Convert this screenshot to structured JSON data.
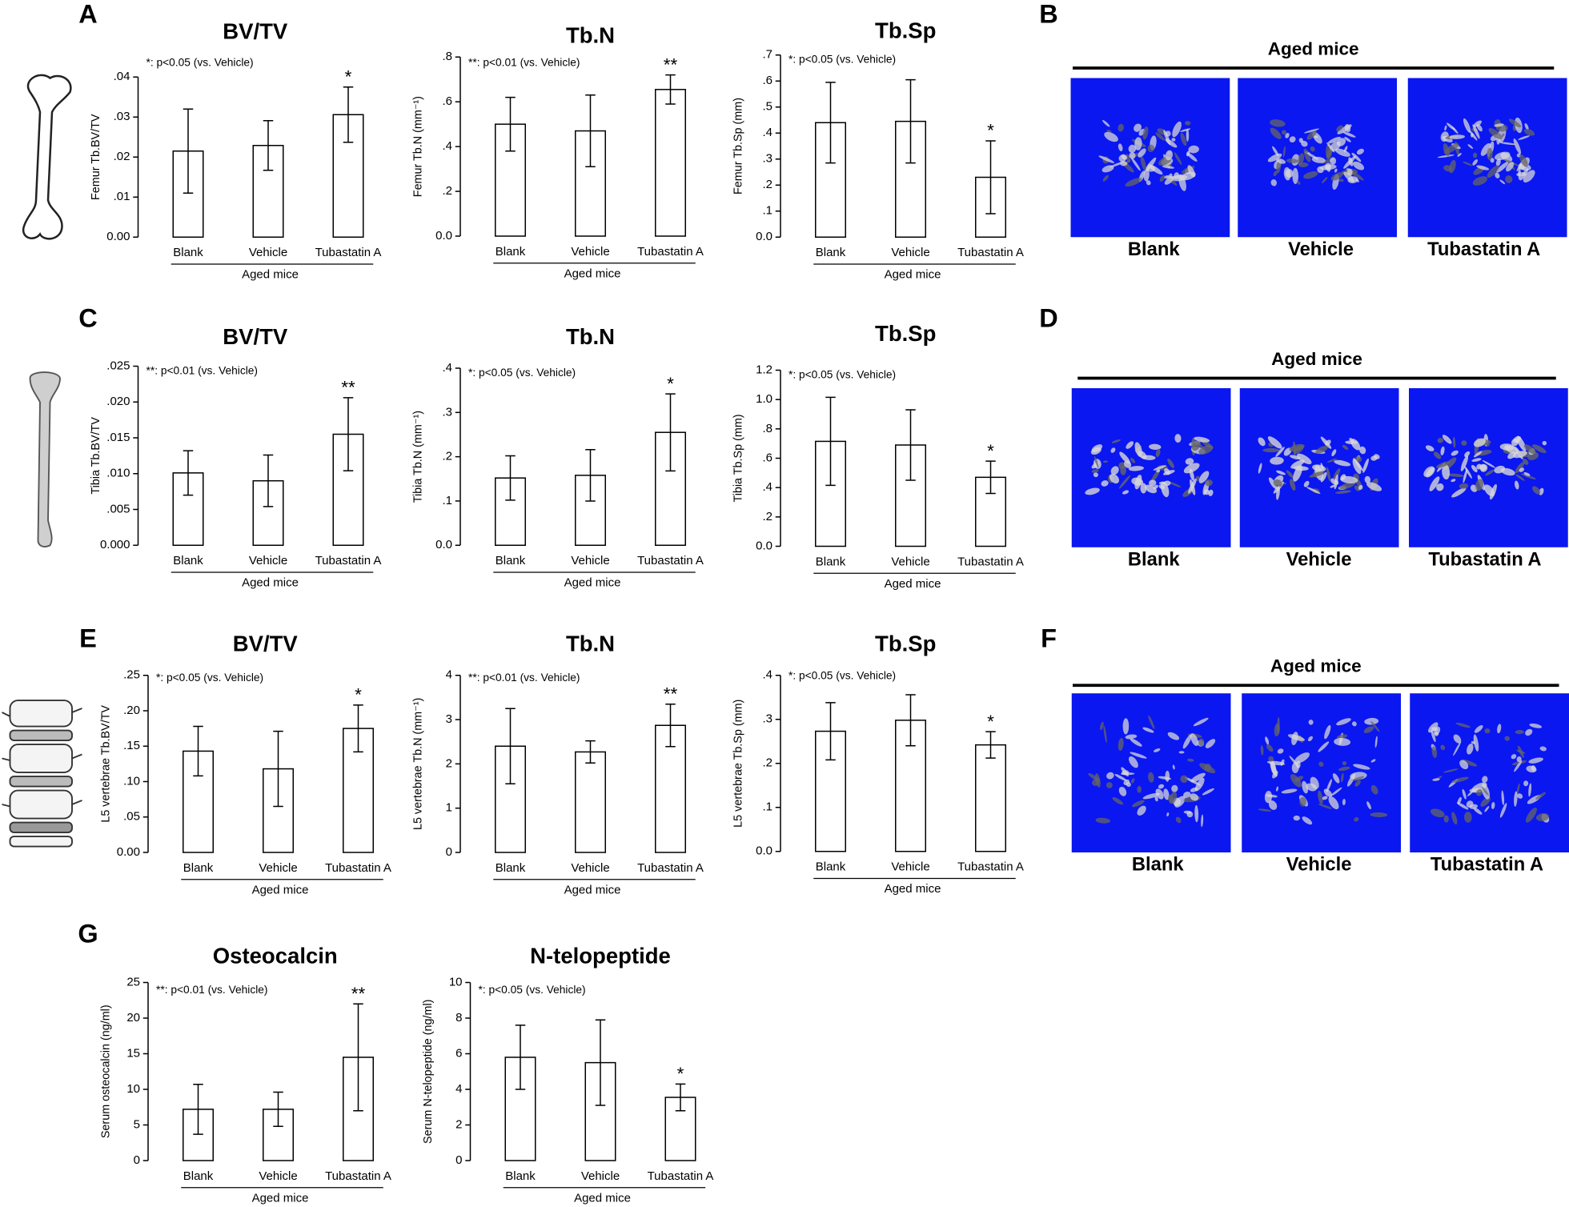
{
  "panel_labels": [
    "A",
    "B",
    "C",
    "D",
    "E",
    "F",
    "G"
  ],
  "chart_data": [
    {
      "type": "bar",
      "title": "BV/TV",
      "note": "*: p<0.05 (vs. Vehicle)",
      "y_label": "Femur Tb.BV/TV",
      "group_label": "Aged mice",
      "categories": [
        "Blank",
        "Vehicle",
        "Tubastatin A"
      ],
      "values": [
        0.0215,
        0.0229,
        0.0306
      ],
      "errors": [
        0.0105,
        0.0062,
        0.0069
      ],
      "significance": [
        null,
        null,
        "*"
      ],
      "color": "#ffffff",
      "ylim": [
        0,
        0.04
      ],
      "yticks": [
        {
          "value": 0,
          "label": "0.00"
        },
        {
          "value": 0.01,
          "label": ".01"
        },
        {
          "value": 0.02,
          "label": ".02"
        },
        {
          "value": 0.03,
          "label": ".03"
        },
        {
          "value": 0.04,
          "label": ".04"
        }
      ]
    },
    {
      "type": "bar",
      "title": "Tb.N",
      "note": "**: p<0.01 (vs. Vehicle)",
      "y_label": "Femur Tb.N (mm⁻¹)",
      "group_label": "Aged mice",
      "categories": [
        "Blank",
        "Vehicle",
        "Tubastatin A"
      ],
      "values": [
        0.5,
        0.47,
        0.655
      ],
      "errors": [
        0.12,
        0.16,
        0.065
      ],
      "significance": [
        null,
        null,
        "**"
      ],
      "color": "#ffffff",
      "ylim": [
        0,
        0.8
      ],
      "yticks": [
        {
          "value": 0,
          "label": "0.0"
        },
        {
          "value": 0.2,
          "label": ".2"
        },
        {
          "value": 0.4,
          "label": ".4"
        },
        {
          "value": 0.6,
          "label": ".6"
        },
        {
          "value": 0.8,
          "label": ".8"
        }
      ]
    },
    {
      "type": "bar",
      "title": "Tb.Sp",
      "note": "*: p<0.05 (vs. Vehicle)",
      "y_label": "Femur Tb.Sp (mm)",
      "group_label": "Aged mice",
      "categories": [
        "Blank",
        "Vehicle",
        "Tubastatin A"
      ],
      "values": [
        0.44,
        0.445,
        0.23
      ],
      "errors": [
        0.155,
        0.16,
        0.14
      ],
      "significance": [
        null,
        null,
        "*"
      ],
      "color": "#ffffff",
      "ylim": [
        0,
        0.7
      ],
      "yticks": [
        {
          "value": 0,
          "label": "0.0"
        },
        {
          "value": 0.1,
          "label": ".1"
        },
        {
          "value": 0.2,
          "label": ".2"
        },
        {
          "value": 0.3,
          "label": ".3"
        },
        {
          "value": 0.4,
          "label": ".4"
        },
        {
          "value": 0.5,
          "label": ".5"
        },
        {
          "value": 0.6,
          "label": ".6"
        },
        {
          "value": 0.7,
          "label": ".7"
        }
      ]
    },
    {
      "type": "bar",
      "title": "BV/TV",
      "note": "**: p<0.01 (vs. Vehicle)",
      "y_label": "Tibia Tb.BV/TV",
      "group_label": "Aged mice",
      "categories": [
        "Blank",
        "Vehicle",
        "Tubastatin A"
      ],
      "values": [
        0.0101,
        0.009,
        0.0155
      ],
      "errors": [
        0.0031,
        0.0036,
        0.0051
      ],
      "significance": [
        null,
        null,
        "**"
      ],
      "color": "#ffffff",
      "ylim": [
        0,
        0.025
      ],
      "yticks": [
        {
          "value": 0,
          "label": "0.000"
        },
        {
          "value": 0.005,
          "label": ".005"
        },
        {
          "value": 0.01,
          "label": ".010"
        },
        {
          "value": 0.015,
          "label": ".015"
        },
        {
          "value": 0.02,
          "label": ".020"
        },
        {
          "value": 0.025,
          "label": ".025"
        }
      ]
    },
    {
      "type": "bar",
      "title": "Tb.N",
      "note": "*: p<0.05 (vs. Vehicle)",
      "y_label": "Tibia Tb.N (mm⁻¹)",
      "group_label": "Aged mice",
      "categories": [
        "Blank",
        "Vehicle",
        "Tubastatin A"
      ],
      "values": [
        0.152,
        0.158,
        0.255
      ],
      "errors": [
        0.05,
        0.058,
        0.087
      ],
      "significance": [
        null,
        null,
        "*"
      ],
      "color": "#ffffff",
      "ylim": [
        0,
        0.4
      ],
      "yticks": [
        {
          "value": 0,
          "label": "0.0"
        },
        {
          "value": 0.1,
          "label": ".1"
        },
        {
          "value": 0.2,
          "label": ".2"
        },
        {
          "value": 0.3,
          "label": ".3"
        },
        {
          "value": 0.4,
          "label": ".4"
        }
      ]
    },
    {
      "type": "bar",
      "title": "Tb.Sp",
      "note": "*: p<0.05 (vs. Vehicle)",
      "y_label": "Tibia Tb.Sp (mm)",
      "group_label": "Aged mice",
      "categories": [
        "Blank",
        "Vehicle",
        "Tubastatin A"
      ],
      "values": [
        0.715,
        0.69,
        0.47
      ],
      "errors": [
        0.3,
        0.24,
        0.11
      ],
      "significance": [
        null,
        null,
        "*"
      ],
      "color": "#ffffff",
      "ylim": [
        0,
        1.2
      ],
      "yticks": [
        {
          "value": 0,
          "label": "0.0"
        },
        {
          "value": 0.2,
          "label": ".2"
        },
        {
          "value": 0.4,
          "label": ".4"
        },
        {
          "value": 0.6,
          "label": ".6"
        },
        {
          "value": 0.8,
          "label": ".8"
        },
        {
          "value": 1,
          "label": "1.0"
        },
        {
          "value": 1.2,
          "label": "1.2"
        }
      ]
    },
    {
      "type": "bar",
      "title": "BV/TV",
      "note": "*: p<0.05 (vs. Vehicle)",
      "y_label": "L5 vertebrae Tb.BV/TV",
      "group_label": "Aged mice",
      "categories": [
        "Blank",
        "Vehicle",
        "Tubastatin A"
      ],
      "values": [
        0.143,
        0.118,
        0.175
      ],
      "errors": [
        0.035,
        0.053,
        0.033
      ],
      "significance": [
        null,
        null,
        "*"
      ],
      "color": "#ffffff",
      "ylim": [
        0,
        0.25
      ],
      "yticks": [
        {
          "value": 0,
          "label": "0.00"
        },
        {
          "value": 0.05,
          "label": ".05"
        },
        {
          "value": 0.1,
          "label": ".10"
        },
        {
          "value": 0.15,
          "label": ".15"
        },
        {
          "value": 0.2,
          "label": ".20"
        },
        {
          "value": 0.25,
          "label": ".25"
        }
      ]
    },
    {
      "type": "bar",
      "title": "Tb.N",
      "note": "**: p<0.01 (vs. Vehicle)",
      "y_label": "L5 vertebrae Tb.N (mm⁻¹)",
      "group_label": "Aged mice",
      "categories": [
        "Blank",
        "Vehicle",
        "Tubastatin A"
      ],
      "values": [
        2.4,
        2.27,
        2.87
      ],
      "errors": [
        0.85,
        0.25,
        0.48
      ],
      "significance": [
        null,
        null,
        "**"
      ],
      "color": "#ffffff",
      "ylim": [
        0,
        4
      ],
      "yticks": [
        0,
        1,
        2,
        3,
        4
      ]
    },
    {
      "type": "bar",
      "title": "Tb.Sp",
      "note": "*: p<0.05 (vs. Vehicle)",
      "y_label": "L5 vertebrae Tb.Sp (mm)",
      "group_label": "Aged mice",
      "categories": [
        "Blank",
        "Vehicle",
        "Tubastatin A"
      ],
      "values": [
        0.273,
        0.298,
        0.242
      ],
      "errors": [
        0.065,
        0.058,
        0.03
      ],
      "significance": [
        null,
        null,
        "*"
      ],
      "color": "#ffffff",
      "ylim": [
        0,
        0.4
      ],
      "yticks": [
        {
          "value": 0,
          "label": "0.0"
        },
        {
          "value": 0.1,
          "label": ".1"
        },
        {
          "value": 0.2,
          "label": ".2"
        },
        {
          "value": 0.3,
          "label": ".3"
        },
        {
          "value": 0.4,
          "label": ".4"
        }
      ]
    },
    {
      "type": "bar",
      "title": "Osteocalcin",
      "note": "**: p<0.01 (vs. Vehicle)",
      "y_label": "Serum osteocalcin (ng/ml)",
      "group_label": "Aged mice",
      "categories": [
        "Blank",
        "Vehicle",
        "Tubastatin A"
      ],
      "values": [
        7.2,
        7.2,
        14.5
      ],
      "errors": [
        3.5,
        2.4,
        7.5
      ],
      "significance": [
        null,
        null,
        "**"
      ],
      "color": "#ffffff",
      "ylim": [
        0,
        25
      ],
      "yticks": [
        0,
        5,
        10,
        15,
        20,
        25
      ]
    },
    {
      "type": "bar",
      "title": "N-telopeptide",
      "note": "*: p<0.05 (vs. Vehicle)",
      "y_label": "Serum N-telopeptide (ng/ml)",
      "group_label": "Aged mice",
      "categories": [
        "Blank",
        "Vehicle",
        "Tubastatin A"
      ],
      "values": [
        5.8,
        5.5,
        3.55
      ],
      "errors": [
        1.8,
        2.4,
        0.75
      ],
      "significance": [
        null,
        null,
        "*"
      ],
      "color": "#ffffff",
      "ylim": [
        0,
        10
      ],
      "yticks": [
        0,
        2,
        4,
        6,
        8,
        10
      ]
    }
  ],
  "ct_panels": [
    {
      "title": "Aged mice",
      "labels": [
        "Blank",
        "Vehicle",
        "Tubastatin A"
      ]
    },
    {
      "title": "Aged mice",
      "labels": [
        "Blank",
        "Vehicle",
        "Tubastatin A"
      ]
    },
    {
      "title": "Aged mice",
      "labels": [
        "Blank",
        "Vehicle",
        "Tubastatin A"
      ]
    }
  ]
}
